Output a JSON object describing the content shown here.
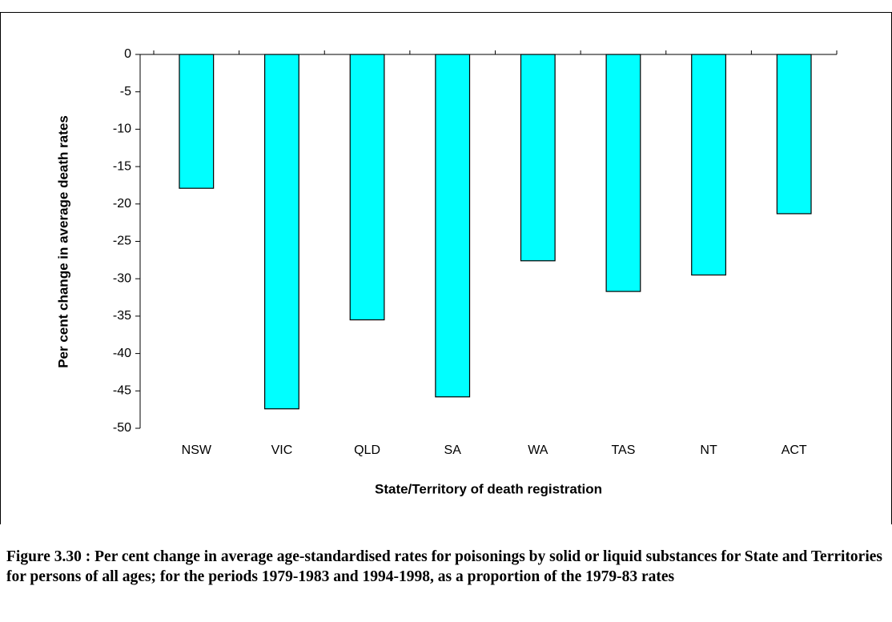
{
  "chart_data": {
    "type": "bar",
    "categories": [
      "NSW",
      "VIC",
      "QLD",
      "SA",
      "WA",
      "TAS",
      "NT",
      "ACT"
    ],
    "values": [
      -17.9,
      -47.4,
      -35.5,
      -45.8,
      -27.6,
      -31.7,
      -29.5,
      -21.3
    ],
    "color": "#00ffff",
    "ylim": [
      -50,
      0
    ],
    "yticks": [
      0,
      -5,
      -10,
      -15,
      -20,
      -25,
      -30,
      -35,
      -40,
      -45,
      -50
    ],
    "y_label": "Per cent change in average death rates",
    "x_label": "State/Territory of death registration",
    "grid": false
  },
  "caption": "Figure 3.30 : Per cent change in average age-standardised rates for poisonings by solid or liquid substances for State and Territories for persons of all ages; for the periods 1979-1983 and 1994-1998, as a proportion of the 1979-83 rates"
}
